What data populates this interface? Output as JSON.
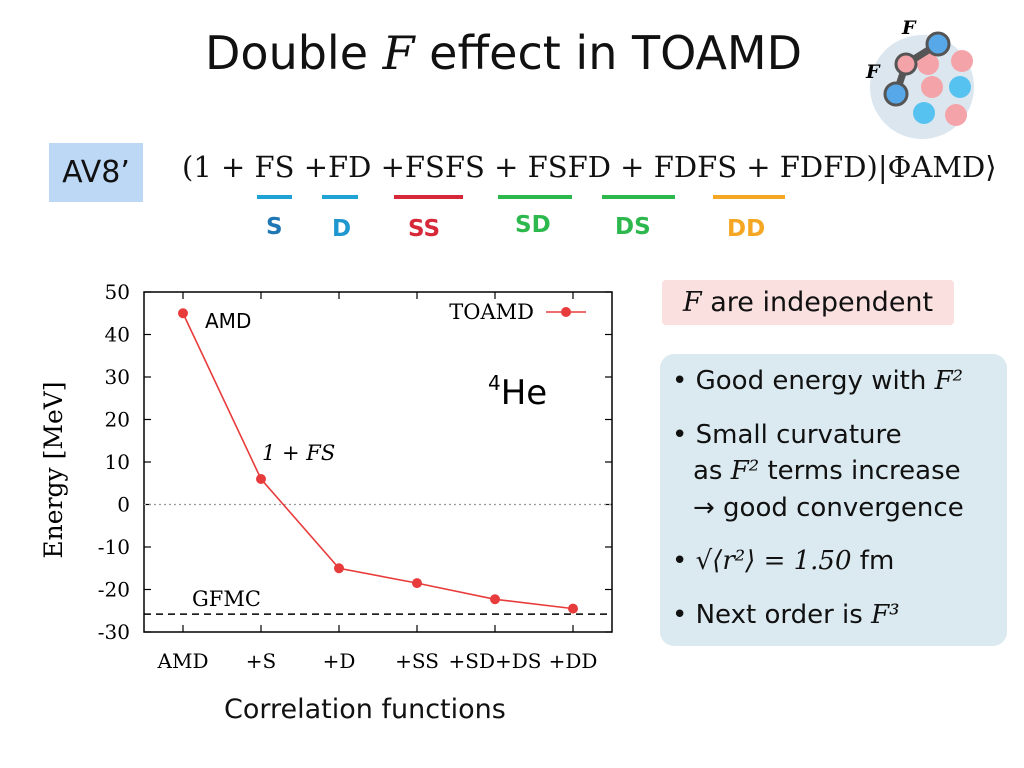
{
  "slide": {
    "title_part1": "Double ",
    "title_var": "F",
    "title_part2": " effect in TOAMD",
    "logo_label_top": "F",
    "logo_label_left": "F"
  },
  "formula": {
    "av8_label": "AV8’",
    "expression": "(1 + FS +FD +FSFS + FSFD + FDFS + FDFD)|ΦAMD⟩",
    "tags": [
      {
        "label": "S",
        "color": "#1f77b4"
      },
      {
        "label": "D",
        "color": "#1f97cf"
      },
      {
        "label": "SS",
        "color": "#d62839"
      },
      {
        "label": "SD",
        "color": "#2db84d"
      },
      {
        "label": "DS",
        "color": "#2db84d"
      },
      {
        "label": "DD",
        "color": "#f5a623"
      }
    ]
  },
  "chart_data": {
    "type": "line",
    "categories": [
      "AMD",
      "+S",
      "+D",
      "+SS",
      "+SD+DS",
      "+DD"
    ],
    "series": [
      {
        "name": "TOAMD",
        "values": [
          45,
          6,
          -15,
          -18.5,
          -22.3,
          -24.5
        ],
        "color": "#e83c3c"
      }
    ],
    "reference_lines": [
      {
        "label": "GFMC",
        "value": -25.8,
        "style": "dashed"
      },
      {
        "label": "",
        "value": 0,
        "style": "dotted"
      }
    ],
    "ylim": [
      -30,
      50
    ],
    "yticks": [
      "50",
      "40",
      "30",
      "20",
      "10",
      "0",
      "-10",
      "-20",
      "-30"
    ],
    "ylabel": "Energy [MeV]",
    "xlabel": "Correlation functions",
    "legend": "top-right",
    "annotations": {
      "amd": "AMD",
      "fs": "1 + FS",
      "nucleus_mass": "4",
      "nucleus": "He"
    }
  },
  "notes": {
    "independent": "are independent",
    "independent_var": "F",
    "b1_text": "Good energy with ",
    "b1_var": "F²",
    "b2_line1": "Small curvature",
    "b2_line2a": "as ",
    "b2_var": "F²",
    "b2_line2b": " terms increase",
    "b2_line3": "→ good convergence",
    "b3_expr": "√⟨r²⟩ = 1.50",
    "b3_unit": " fm",
    "b4_text": "Next order is ",
    "b4_var": "F³"
  }
}
